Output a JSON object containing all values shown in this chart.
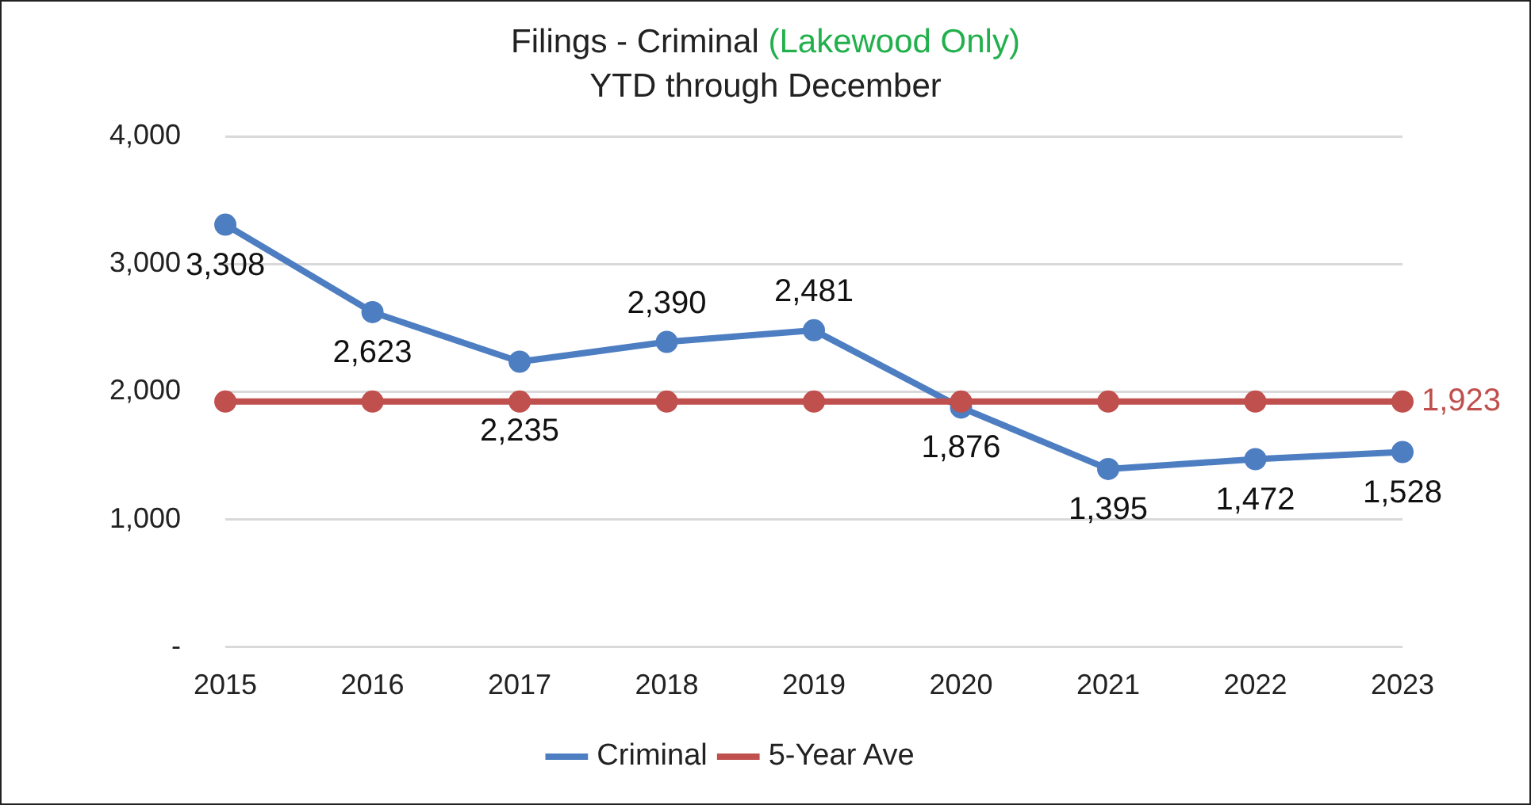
{
  "chart_data": {
    "type": "line",
    "title": "Filings - Criminal (Lakewood Only)",
    "subtitle": "YTD through December",
    "categories": [
      "2015",
      "2016",
      "2017",
      "2018",
      "2019",
      "2020",
      "2021",
      "2022",
      "2023"
    ],
    "series": [
      {
        "name": "Criminal",
        "color": "#4e7ec2",
        "values": [
          3308,
          2623,
          2235,
          2390,
          2481,
          1876,
          1395,
          1472,
          1528
        ],
        "value_labels": [
          "3,308",
          "2,623",
          "2,235",
          "2,390",
          "2,481",
          "1,876",
          "1,395",
          "1,472",
          "1,528"
        ]
      },
      {
        "name": "5-Year Ave",
        "color": "#c0504d",
        "values": [
          1923,
          1923,
          1923,
          1923,
          1923,
          1923,
          1923,
          1923,
          1923
        ],
        "value_labels": [
          null,
          null,
          null,
          null,
          null,
          null,
          null,
          null,
          "1,923"
        ]
      }
    ],
    "ylim": [
      0,
      4000
    ],
    "yticks": [
      {
        "value": 0,
        "label": "-"
      },
      {
        "value": 1000,
        "label": "1,000"
      },
      {
        "value": 2000,
        "label": "2,000"
      },
      {
        "value": 3000,
        "label": "3,000"
      },
      {
        "value": 4000,
        "label": "4,000"
      }
    ],
    "grid": "y",
    "legend": "bottom",
    "marker": "circle",
    "line_style": "solid"
  }
}
